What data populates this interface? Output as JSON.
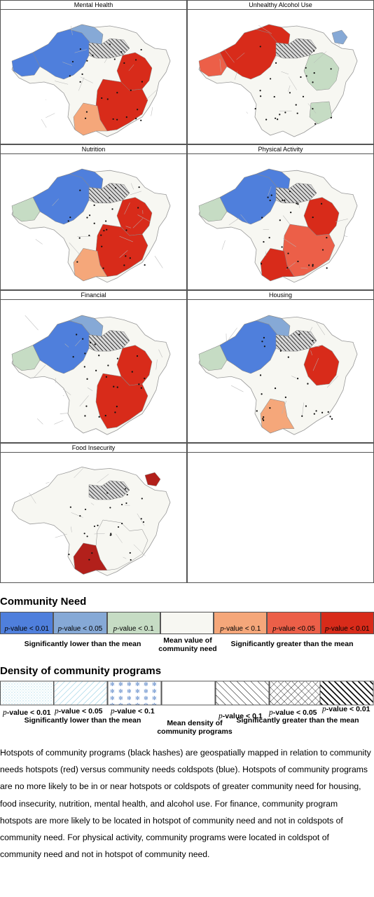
{
  "panels": [
    {
      "title": "Mental Health",
      "variant": 0
    },
    {
      "title": "Unhealthy Alcohol Use",
      "variant": 1
    },
    {
      "title": "Nutrition",
      "variant": 2
    },
    {
      "title": "Physical Activity",
      "variant": 3
    },
    {
      "title": "Financial",
      "variant": 4
    },
    {
      "title": "Housing",
      "variant": 5
    },
    {
      "title": "Food Insecurity",
      "variant": 6
    },
    {
      "title": "",
      "variant": -1
    }
  ],
  "colors": {
    "cold_99": "#4f7fdc",
    "cold_95": "#86a9d6",
    "cold_90": "#c6dcc4",
    "neutral": "#f7f7f2",
    "hot_90": "#f5a77a",
    "hot_95": "#ec5f48",
    "hot_99": "#d82b1a",
    "food_hot": "#b2201b"
  },
  "legend_need": {
    "heading": "Community Need",
    "items": [
      {
        "pvalue": "-value < 0.01",
        "color": "#4f7fdc"
      },
      {
        "pvalue": "-value < 0.05",
        "color": "#86a9d6"
      },
      {
        "pvalue": "-value < 0.1",
        "color": "#c6dcc4"
      },
      {
        "pvalue": "",
        "color": "#f7f7f2"
      },
      {
        "pvalue": "-value < 0.1",
        "color": "#f5a77a"
      },
      {
        "pvalue": "-value <0.05",
        "color": "#ec5f48"
      },
      {
        "pvalue": "-value < 0.01",
        "color": "#d82b1a"
      }
    ],
    "p_symbol": "p",
    "lower_label": "Significantly lower than the mean",
    "mean_label": "Mean value of community need",
    "greater_label": "Significantly greater than the mean"
  },
  "legend_density": {
    "heading": "Density of community programs",
    "p_symbol": "p",
    "pvalues": [
      "-value < 0.01",
      "-value < 0.05",
      "-value < 0.1",
      "-value < 0.1",
      "-value < 0.05",
      "-value < 0.01"
    ],
    "lower_label": "Significantly lower than the mean",
    "mean_label": "Mean density of community programs",
    "greater_label": "Significantly greater than the mean"
  },
  "caption": "Hotspots of community programs (black hashes) are geospatially mapped in relation to community needs hotspots (red) versus community needs coldspots (blue). Hotspots of community programs are no more likely to be in or near hotspots or coldspots of greater community need for housing, food insecurity, nutrition, mental health, and alcohol use. For finance, community program hotspots are more likely to be located in hotspot of community need and not in coldspots of community need.  For physical activity, community programs were located in coldspot of community need and not in hotspot of community need."
}
